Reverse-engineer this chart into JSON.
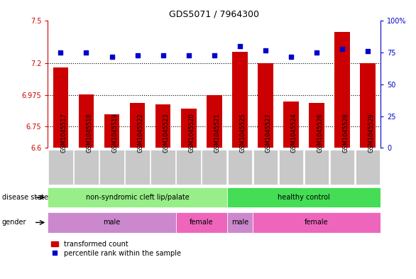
{
  "title": "GDS5071 / 7964300",
  "samples": [
    "GSM1045517",
    "GSM1045518",
    "GSM1045519",
    "GSM1045522",
    "GSM1045523",
    "GSM1045520",
    "GSM1045521",
    "GSM1045525",
    "GSM1045527",
    "GSM1045524",
    "GSM1045526",
    "GSM1045528",
    "GSM1045529"
  ],
  "red_values": [
    7.17,
    6.98,
    6.84,
    6.92,
    6.91,
    6.88,
    6.975,
    7.28,
    7.2,
    6.93,
    6.92,
    7.42,
    7.2
  ],
  "blue_values": [
    75,
    75,
    72,
    73,
    73,
    73,
    73,
    80,
    77,
    72,
    75,
    78,
    76
  ],
  "ylim_left": [
    6.6,
    7.5
  ],
  "ylim_right": [
    0,
    100
  ],
  "yticks_left": [
    6.6,
    6.75,
    6.975,
    7.2,
    7.5
  ],
  "ytick_labels_left": [
    "6.6",
    "6.75",
    "6.975",
    "7.2",
    "7.5"
  ],
  "yticks_right": [
    0,
    25,
    50,
    75,
    100
  ],
  "ytick_labels_right": [
    "0",
    "25",
    "50",
    "75",
    "100%"
  ],
  "hlines": [
    6.75,
    6.975,
    7.2
  ],
  "disease_state_groups": [
    {
      "label": "non-syndromic cleft lip/palate",
      "start": 0,
      "end": 7,
      "color": "#98EE88"
    },
    {
      "label": "healthy control",
      "start": 7,
      "end": 13,
      "color": "#44DD55"
    }
  ],
  "gender_groups": [
    {
      "label": "male",
      "start": 0,
      "end": 5,
      "color": "#CC88CC"
    },
    {
      "label": "female",
      "start": 5,
      "end": 7,
      "color": "#EE66BB"
    },
    {
      "label": "male",
      "start": 7,
      "end": 8,
      "color": "#CC88CC"
    },
    {
      "label": "female",
      "start": 8,
      "end": 13,
      "color": "#EE66BB"
    }
  ],
  "bar_color": "#CC0000",
  "dot_color": "#0000CC",
  "title_color": "black",
  "left_axis_color": "#CC0000",
  "right_axis_color": "#0000CC",
  "legend_items": [
    "transformed count",
    "percentile rank within the sample"
  ],
  "disease_label": "disease state",
  "gender_label": "gender",
  "sample_box_color": "#C8C8C8"
}
